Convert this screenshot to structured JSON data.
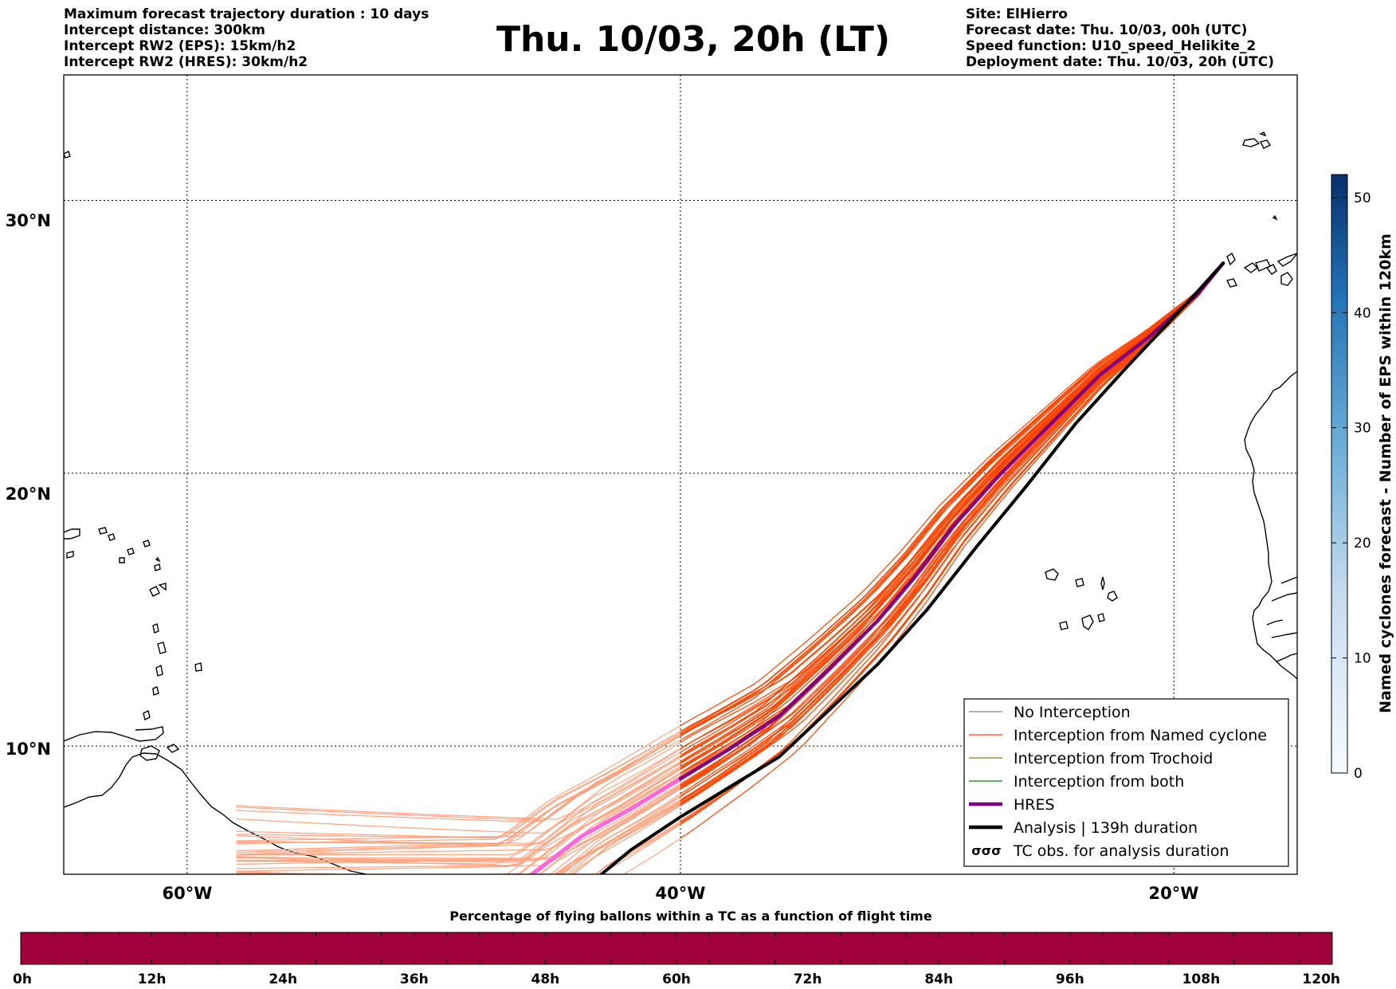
{
  "header": {
    "title": "Thu. 10/03, 20h (LT)",
    "left_lines": [
      "Maximum forecast trajectory duration : 10 days",
      "Intercept distance: 300km",
      "Intercept RW2 (EPS):  15km/h2",
      "Intercept RW2 (HRES): 30km/h2"
    ],
    "right_lines": [
      "Site: ElHierro",
      "Forecast date: Thu. 10/03, 00h (UTC)",
      "Speed function: U10_speed_Helikite_2",
      "Deployment date: Thu. 10/03, 20h (UTC)"
    ]
  },
  "map": {
    "lon_range": [
      -65,
      -15
    ],
    "lat_range": [
      5.3,
      34.6
    ],
    "lon_ticks": [
      {
        "lon": -60,
        "label": "60°W"
      },
      {
        "lon": -40,
        "label": "40°W"
      },
      {
        "lon": -20,
        "label": "20°W"
      }
    ],
    "lat_ticks": [
      {
        "lat": 10,
        "label": "10°N"
      },
      {
        "lat": 20,
        "label": "20°N"
      },
      {
        "lat": 30,
        "label": "30°N"
      }
    ],
    "grid": true,
    "launch_site": {
      "name": "ElHierro",
      "lon": -18.0,
      "lat": 27.7
    },
    "colors": {
      "eps_interception": "#ff4500",
      "eps_faded": "#ffa07a",
      "hres": "#800080",
      "hres_faded": "#ff66dd",
      "analysis": "#000000"
    },
    "hres_track": [
      [
        -18.0,
        27.7
      ],
      [
        -19.0,
        26.6
      ],
      [
        -21.0,
        25.0
      ],
      [
        -23.0,
        23.6
      ],
      [
        -25.0,
        21.8
      ],
      [
        -27.0,
        20.0
      ],
      [
        -29.0,
        18.0
      ],
      [
        -30.5,
        16.2
      ],
      [
        -32.0,
        14.6
      ],
      [
        -34.0,
        12.8
      ],
      [
        -36.0,
        11.1
      ],
      [
        -38.0,
        9.9
      ],
      [
        -40.0,
        8.8
      ],
      [
        -42.0,
        7.7
      ],
      [
        -44.0,
        6.7
      ],
      [
        -46.0,
        5.3
      ]
    ],
    "analysis_track": [
      [
        -18.0,
        27.7
      ],
      [
        -19.3,
        26.4
      ],
      [
        -22.0,
        23.8
      ],
      [
        -24.0,
        21.8
      ],
      [
        -26.0,
        19.5
      ],
      [
        -28.0,
        17.3
      ],
      [
        -30.0,
        15.0
      ],
      [
        -32.0,
        13.0
      ],
      [
        -34.0,
        11.3
      ],
      [
        -36.0,
        9.6
      ],
      [
        -38.0,
        8.5
      ],
      [
        -40.0,
        7.4
      ],
      [
        -42.0,
        6.2
      ],
      [
        -43.2,
        5.3
      ]
    ],
    "analysis_hours": 139,
    "eps_track_count": 50
  },
  "legend": {
    "items": [
      {
        "label": "No Interception",
        "color": "#808080",
        "style": "thin"
      },
      {
        "label": "Interception from Named cyclone",
        "color": "#ff4500",
        "style": "thin"
      },
      {
        "label": "Interception from Trochoid",
        "color": "#808000",
        "style": "thin"
      },
      {
        "label": "Interception from both",
        "color": "#008000",
        "style": "thin"
      },
      {
        "label": "HRES",
        "color": "#800080",
        "style": "thick"
      },
      {
        "label": "Analysis | 139h duration",
        "color": "#000000",
        "style": "thick"
      },
      {
        "label": "TC obs. for analysis duration",
        "color": "#000000",
        "style": "marker"
      }
    ]
  },
  "colorbar_right": {
    "label": "Named cyclones forecast - Number of EPS within 120km",
    "min": 0,
    "max": 52,
    "ticks": [
      0,
      10,
      20,
      30,
      40,
      50
    ],
    "colors": [
      "#e8f1fb",
      "#08306b"
    ]
  },
  "colorbar_bottom": {
    "label": "Percentage of flying ballons within a TC as a function of flight time",
    "color": "#a0003c",
    "ticks": [
      "0h",
      "12h",
      "24h",
      "36h",
      "48h",
      "60h",
      "72h",
      "84h",
      "96h",
      "108h",
      "120h"
    ]
  }
}
